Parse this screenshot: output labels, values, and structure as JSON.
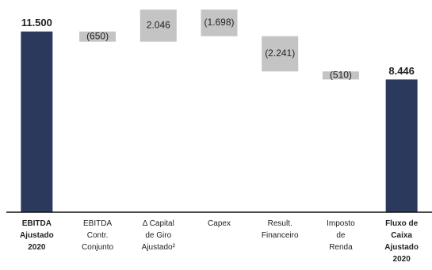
{
  "chart_data": {
    "type": "waterfall",
    "categories": [
      "EBITDA\nAjustado\n2020",
      "EBITDA\nContr.\nConjunto",
      "Δ Capital\nde Giro\nAjustado²",
      "Capex",
      "Result.\nFinanceiro",
      "Imposto\nde\nRenda",
      "Fluxo de\nCaixa\nAjustado\n2020"
    ],
    "values": [
      11500,
      -650,
      2046,
      -1698,
      -2241,
      -510,
      8446
    ],
    "value_labels": [
      "11.500",
      "(650)",
      "2.046",
      "(1.698)",
      "(2.241)",
      "(510)",
      "8.446"
    ],
    "measure": [
      "absolute",
      "relative",
      "relative",
      "relative",
      "relative",
      "relative",
      "total"
    ],
    "total_color": "#2b3a5c",
    "delta_color": "#c4c4c4",
    "ylim": [
      0,
      13000
    ]
  }
}
